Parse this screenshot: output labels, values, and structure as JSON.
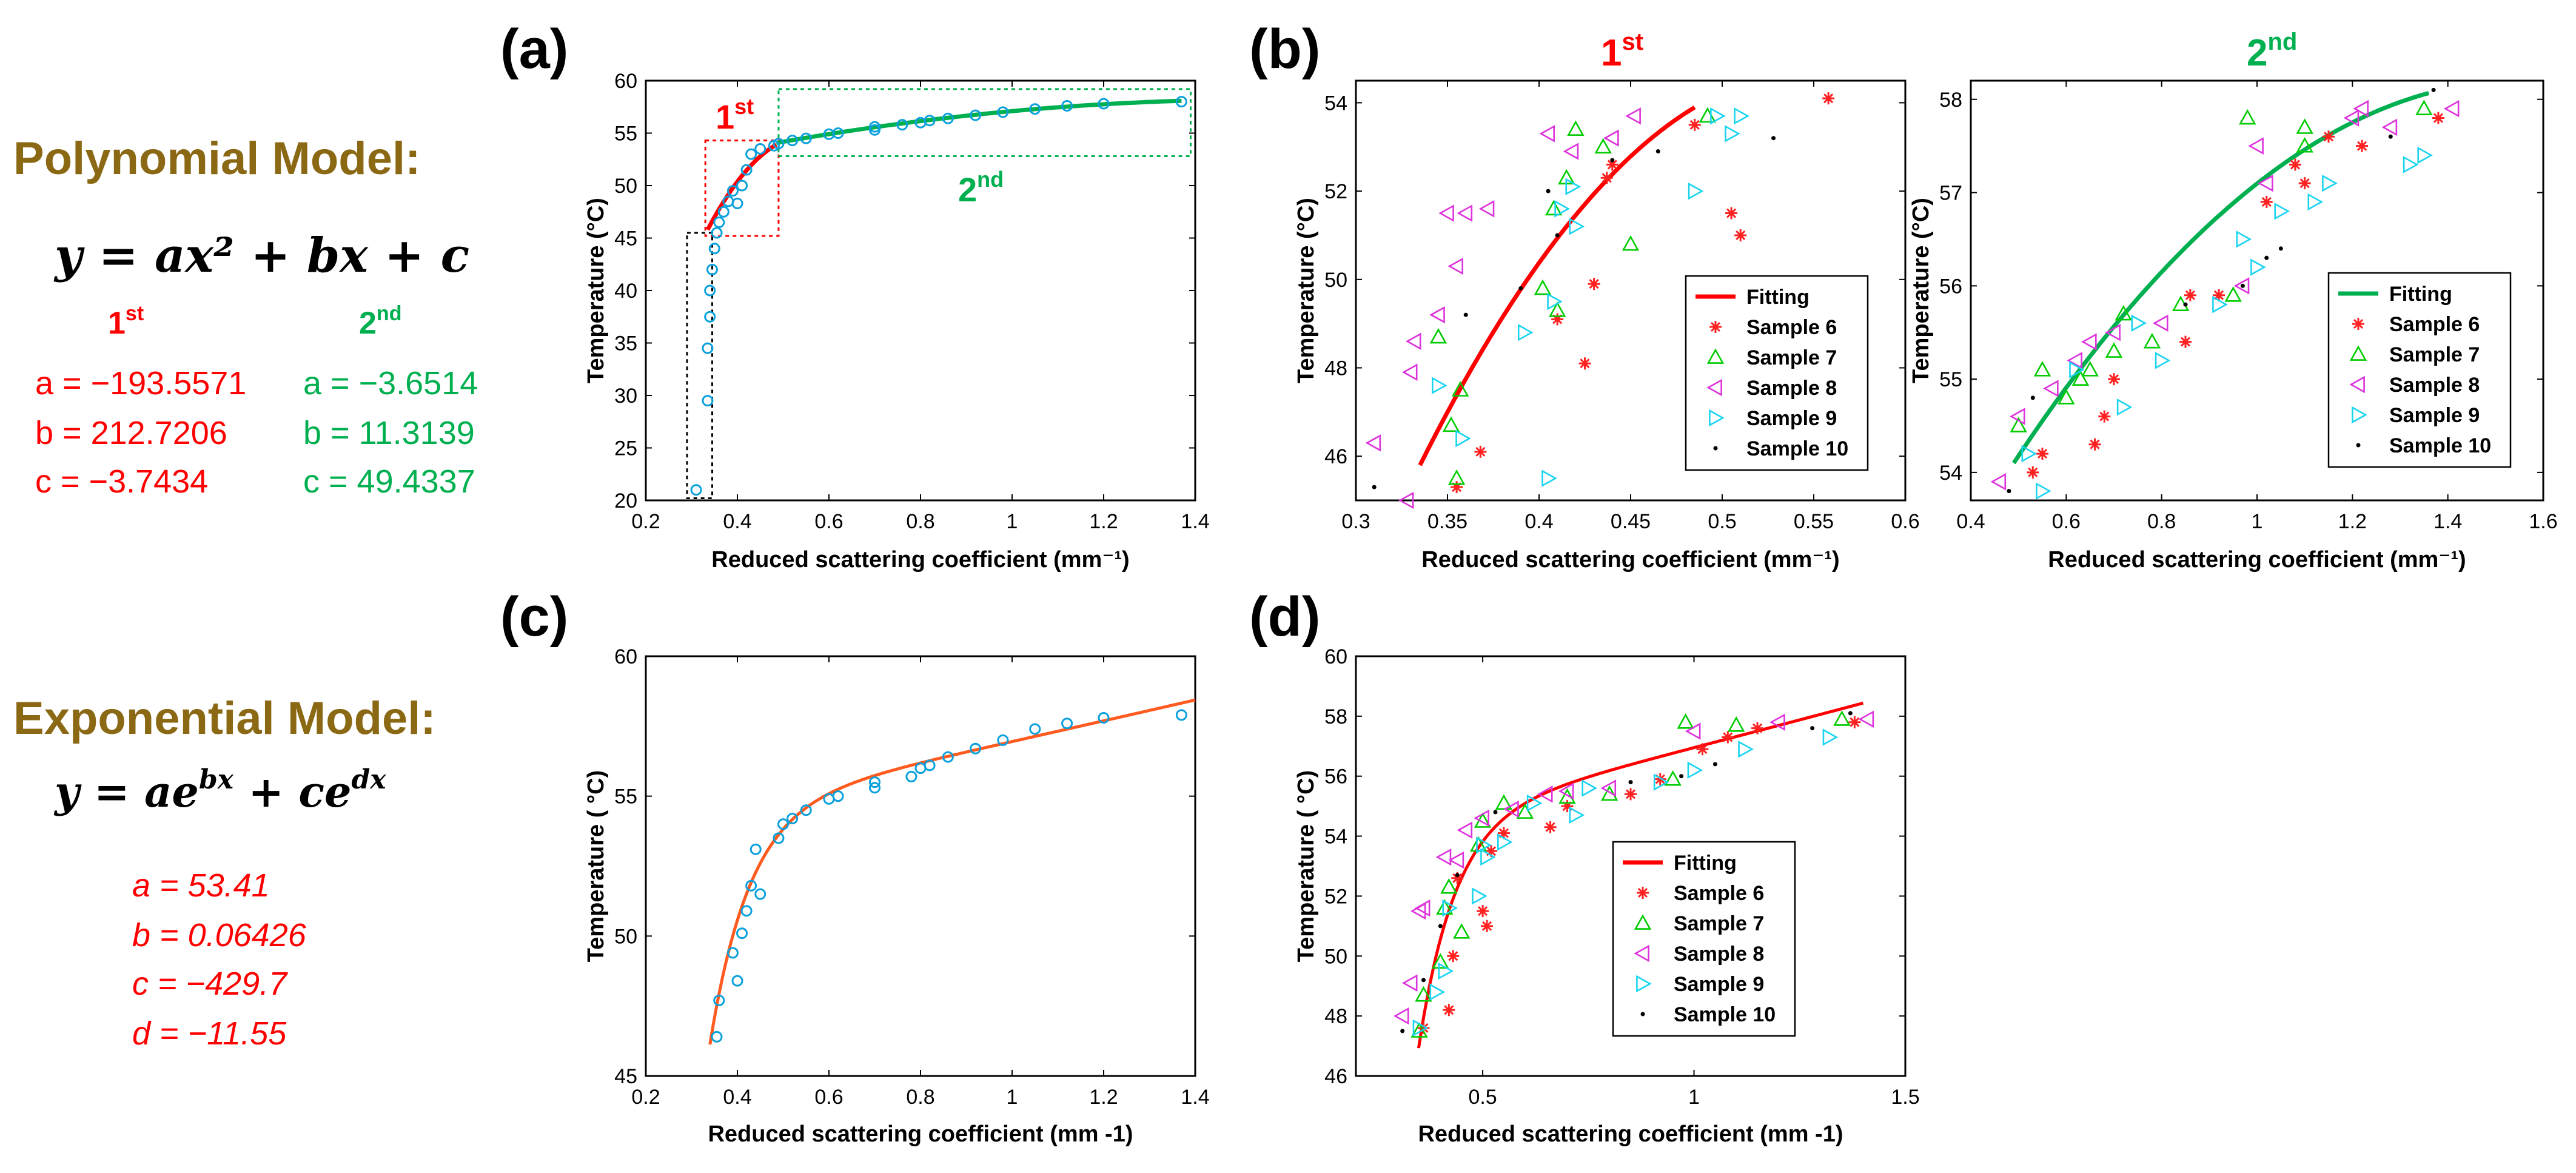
{
  "left_panel": {
    "polynomial": {
      "title": "Polynomial Model:",
      "equation": "y = ax² + bx + c",
      "col1": {
        "label": "1",
        "sup": "st",
        "a": "a = −193.5571",
        "b": "b = 212.7206",
        "c": "c = −3.7434"
      },
      "col2": {
        "label": "2",
        "sup": "nd",
        "a": "a = −3.6514",
        "b": "b = 11.3139",
        "c": "c = 49.4337"
      }
    },
    "exponential": {
      "title": "Exponential Model:",
      "equation": "y = ae^(bx) + ce^(dx)",
      "a": "a = 53.41",
      "b": "b = 0.06426",
      "c": "c = −429.7",
      "d": "d = −11.55"
    }
  },
  "colors": {
    "polynomial_title": "#8B6914",
    "first": "#ff0000",
    "second": "#00b050",
    "marker": "#0aa0dc",
    "fit_orange": "#ff5a1f",
    "s6": "#ff2020",
    "s7": "#00cc00",
    "s8": "#dd33dd",
    "s9": "#19d4f0",
    "s10": "#000000"
  },
  "chart_data": [
    {
      "id": "a",
      "label": "(a)",
      "type": "scatter",
      "xlabel": "Reduced scattering coefficient (mm⁻¹)",
      "ylabel": "Temperature (°C)",
      "xlim": [
        0.2,
        1.4
      ],
      "ylim": [
        20,
        60
      ],
      "xticks": [
        0.2,
        0.4,
        0.6,
        0.8,
        1,
        1.2,
        1.4
      ],
      "yticks": [
        20,
        25,
        30,
        35,
        40,
        45,
        50,
        55,
        60
      ],
      "points_x": [
        0.31,
        0.335,
        0.335,
        0.34,
        0.34,
        0.345,
        0.35,
        0.355,
        0.36,
        0.37,
        0.38,
        0.39,
        0.4,
        0.41,
        0.42,
        0.43,
        0.45,
        0.48,
        0.49,
        0.52,
        0.55,
        0.6,
        0.62,
        0.7,
        0.7,
        0.76,
        0.8,
        0.82,
        0.86,
        0.92,
        0.98,
        1.05,
        1.12,
        1.2,
        1.37
      ],
      "points_y": [
        21,
        29.5,
        34.5,
        37.5,
        40,
        42,
        44,
        45.5,
        46.5,
        47.5,
        48.5,
        49.5,
        48.3,
        50,
        51.5,
        53,
        53.5,
        53.8,
        54,
        54.3,
        54.5,
        54.9,
        55,
        55.3,
        55.6,
        55.8,
        56,
        56.2,
        56.4,
        56.7,
        57,
        57.3,
        57.6,
        57.8,
        58
      ],
      "fit1": {
        "name": "1st",
        "a": -193.5571,
        "b": 212.7206,
        "c": -3.7434,
        "xrange": [
          0.335,
          0.485
        ]
      },
      "fit2": {
        "name": "2nd",
        "a": -3.6514,
        "b": 11.3139,
        "c": 49.4337,
        "xrange": [
          0.485,
          1.37
        ]
      },
      "annot_1st": "1",
      "annot_1st_sup": "st",
      "annot_2nd": "2",
      "annot_2nd_sup": "nd"
    },
    {
      "id": "b1",
      "label": "(b)",
      "type": "scatter",
      "title": "1",
      "title_sup": "st",
      "xlabel": "Reduced scattering coefficient (mm⁻¹)",
      "ylabel": "Temperature (°C)",
      "xlim": [
        0.3,
        0.6
      ],
      "ylim": [
        45,
        54.5
      ],
      "xticks": [
        0.3,
        0.35,
        0.4,
        0.45,
        0.5,
        0.55,
        0.6
      ],
      "yticks": [
        46,
        48,
        50,
        52,
        54
      ],
      "fit": {
        "a": -193.5571,
        "b": 212.7206,
        "c": -3.7434,
        "xrange": [
          0.335,
          0.485
        ]
      },
      "legend": [
        "Fitting",
        "Sample 6",
        "Sample 7",
        "Sample 8",
        "Sample 9",
        "Sample 10"
      ],
      "series": [
        {
          "name": "Sample 6",
          "marker": "star",
          "x": [
            0.355,
            0.368,
            0.41,
            0.425,
            0.43,
            0.437,
            0.44,
            0.485,
            0.505,
            0.51,
            0.558
          ],
          "y": [
            45.3,
            46.1,
            49.1,
            48.1,
            49.9,
            52.3,
            52.6,
            53.5,
            51.5,
            51.0,
            54.1
          ]
        },
        {
          "name": "Sample 7",
          "marker": "tri-up",
          "x": [
            0.345,
            0.352,
            0.355,
            0.357,
            0.402,
            0.408,
            0.41,
            0.415,
            0.42,
            0.435,
            0.45,
            0.492
          ],
          "y": [
            48.7,
            46.7,
            45.5,
            47.5,
            49.8,
            51.6,
            49.3,
            52.3,
            53.4,
            53.0,
            50.8,
            53.7
          ]
        },
        {
          "name": "Sample 8",
          "marker": "tri-left",
          "x": [
            0.31,
            0.328,
            0.33,
            0.332,
            0.345,
            0.35,
            0.355,
            0.36,
            0.372,
            0.405,
            0.418,
            0.44,
            0.452
          ],
          "y": [
            46.3,
            45.0,
            47.9,
            48.6,
            49.2,
            51.5,
            50.3,
            51.5,
            51.6,
            53.3,
            52.9,
            53.2,
            53.7
          ]
        },
        {
          "name": "Sample 9",
          "marker": "tri-right",
          "x": [
            0.345,
            0.358,
            0.392,
            0.405,
            0.408,
            0.412,
            0.418,
            0.42,
            0.485,
            0.497,
            0.505,
            0.51
          ],
          "y": [
            47.6,
            46.4,
            48.8,
            45.5,
            49.5,
            51.6,
            52.1,
            51.2,
            52.0,
            53.7,
            53.3,
            53.7
          ]
        },
        {
          "name": "Sample 10",
          "marker": "dot",
          "x": [
            0.31,
            0.36,
            0.39,
            0.405,
            0.41,
            0.44,
            0.465,
            0.528
          ],
          "y": [
            45.3,
            49.2,
            49.8,
            52.0,
            51.0,
            52.7,
            52.9,
            53.2
          ]
        }
      ]
    },
    {
      "id": "b2",
      "type": "scatter",
      "title": "2",
      "title_sup": "nd",
      "xlabel": "Reduced scattering coefficient (mm⁻¹)",
      "ylabel": "Temperature (°C)",
      "xlim": [
        0.4,
        1.6
      ],
      "ylim": [
        53.7,
        58.2
      ],
      "xticks": [
        0.4,
        0.6,
        0.8,
        1,
        1.2,
        1.4,
        1.6
      ],
      "yticks": [
        54,
        55,
        56,
        57,
        58
      ],
      "fit": {
        "a": -3.6514,
        "b": 11.3139,
        "c": 49.4337,
        "xrange": [
          0.49,
          1.36
        ]
      },
      "legend": [
        "Fitting",
        "Sample 6",
        "Sample 7",
        "Sample 8",
        "Sample 9",
        "Sample 10"
      ],
      "series": [
        {
          "name": "Sample 6",
          "marker": "star",
          "x": [
            0.53,
            0.55,
            0.66,
            0.68,
            0.7,
            0.85,
            0.86,
            0.92,
            1.02,
            1.08,
            1.1,
            1.15,
            1.22,
            1.38
          ],
          "y": [
            54.0,
            54.2,
            54.3,
            54.6,
            55.0,
            55.4,
            55.9,
            55.9,
            56.9,
            57.3,
            57.1,
            57.6,
            57.5,
            57.8
          ]
        },
        {
          "name": "Sample 7",
          "marker": "tri-up",
          "x": [
            0.5,
            0.55,
            0.6,
            0.63,
            0.65,
            0.7,
            0.72,
            0.78,
            0.84,
            0.95,
            0.98,
            1.1,
            1.1,
            1.35
          ],
          "y": [
            54.5,
            55.1,
            54.8,
            55.0,
            55.1,
            55.3,
            55.7,
            55.4,
            55.8,
            55.9,
            57.8,
            57.5,
            57.7,
            57.9
          ]
        },
        {
          "name": "Sample 8",
          "marker": "tri-left",
          "x": [
            0.46,
            0.5,
            0.57,
            0.62,
            0.65,
            0.7,
            0.8,
            0.97,
            1.0,
            1.02,
            1.2,
            1.22,
            1.28,
            1.41
          ],
          "y": [
            53.9,
            54.6,
            54.9,
            55.2,
            55.4,
            55.5,
            55.6,
            56.0,
            57.5,
            57.1,
            57.8,
            57.9,
            57.7,
            57.9
          ]
        },
        {
          "name": "Sample 9",
          "marker": "tri-right",
          "x": [
            0.52,
            0.55,
            0.62,
            0.72,
            0.75,
            0.8,
            0.92,
            0.97,
            1.0,
            1.05,
            1.12,
            1.15,
            1.32,
            1.35
          ],
          "y": [
            54.2,
            53.8,
            55.1,
            54.7,
            55.6,
            55.2,
            55.8,
            56.5,
            56.2,
            56.8,
            56.9,
            57.1,
            57.3,
            57.4
          ]
        },
        {
          "name": "Sample 10",
          "marker": "dot",
          "x": [
            0.48,
            0.53,
            0.85,
            0.97,
            1.02,
            1.05,
            1.28,
            1.37
          ],
          "y": [
            53.8,
            54.8,
            55.8,
            56.0,
            56.3,
            56.4,
            57.6,
            58.1
          ]
        }
      ]
    },
    {
      "id": "c",
      "label": "(c)",
      "type": "scatter",
      "xlabel": "Reduced scattering coefficient (mm -1)",
      "ylabel": "Temperature ( °C)",
      "xlim": [
        0.2,
        1.4
      ],
      "ylim": [
        45,
        60
      ],
      "xticks": [
        0.2,
        0.4,
        0.6,
        0.8,
        1,
        1.2,
        1.4
      ],
      "yticks": [
        45,
        50,
        55,
        60
      ],
      "points_x": [
        0.355,
        0.36,
        0.39,
        0.4,
        0.41,
        0.42,
        0.43,
        0.44,
        0.45,
        0.49,
        0.5,
        0.52,
        0.55,
        0.6,
        0.62,
        0.7,
        0.7,
        0.78,
        0.8,
        0.82,
        0.86,
        0.92,
        0.98,
        1.05,
        1.12,
        1.2,
        1.37
      ],
      "points_y": [
        46.4,
        47.7,
        49.4,
        48.4,
        50.1,
        50.9,
        51.8,
        53.1,
        51.5,
        53.5,
        54.0,
        54.2,
        54.5,
        54.9,
        55.0,
        55.3,
        55.5,
        55.7,
        56.0,
        56.1,
        56.4,
        56.7,
        57.0,
        57.4,
        57.6,
        57.8,
        57.9
      ],
      "fit": {
        "a": 53.41,
        "b": 0.06426,
        "c": -429.7,
        "d": -11.55,
        "xrange": [
          0.34,
          1.4
        ]
      }
    },
    {
      "id": "d",
      "label": "(d)",
      "type": "scatter",
      "xlabel": "Reduced scattering coefficient (mm -1)",
      "ylabel": "Temperature ( °C)",
      "xlim": [
        0.2,
        1.5
      ],
      "ylim": [
        46,
        60
      ],
      "xticks": [
        0.5,
        1,
        1.5
      ],
      "yticks": [
        46,
        48,
        50,
        52,
        54,
        56,
        58,
        60
      ],
      "fit": {
        "a": 53.41,
        "b": 0.06426,
        "c": -429.7,
        "d": -11.55,
        "xrange": [
          0.335,
          1.4
        ]
      },
      "legend": [
        "Fitting",
        "Sample 6",
        "Sample 7",
        "Sample 8",
        "Sample 9",
        "Sample 10"
      ],
      "series": [
        {
          "name": "Sample 6",
          "marker": "star",
          "x": [
            0.36,
            0.42,
            0.43,
            0.44,
            0.5,
            0.51,
            0.52,
            0.55,
            0.66,
            0.7,
            0.85,
            0.92,
            1.02,
            1.08,
            1.15,
            1.38
          ],
          "y": [
            47.6,
            48.2,
            50.0,
            52.6,
            51.5,
            51.0,
            53.5,
            54.1,
            54.3,
            55.0,
            55.4,
            55.9,
            56.9,
            57.3,
            57.6,
            57.8
          ]
        },
        {
          "name": "Sample 7",
          "marker": "tri-up",
          "x": [
            0.35,
            0.36,
            0.4,
            0.41,
            0.42,
            0.45,
            0.49,
            0.5,
            0.55,
            0.6,
            0.7,
            0.8,
            0.95,
            0.98,
            1.1,
            1.35
          ],
          "y": [
            47.5,
            48.7,
            49.8,
            51.6,
            52.3,
            50.8,
            53.7,
            54.5,
            55.1,
            54.8,
            55.3,
            55.4,
            55.9,
            57.8,
            57.7,
            57.9
          ]
        },
        {
          "name": "Sample 8",
          "marker": "tri-left",
          "x": [
            0.31,
            0.33,
            0.35,
            0.36,
            0.41,
            0.44,
            0.46,
            0.5,
            0.57,
            0.65,
            0.7,
            0.8,
            1.0,
            1.2,
            1.41
          ],
          "y": [
            48.0,
            49.1,
            51.5,
            51.6,
            53.3,
            53.2,
            54.2,
            54.6,
            54.9,
            55.4,
            55.5,
            55.6,
            57.5,
            57.8,
            57.9
          ]
        },
        {
          "name": "Sample 9",
          "marker": "tri-right",
          "x": [
            0.35,
            0.39,
            0.41,
            0.42,
            0.49,
            0.5,
            0.51,
            0.55,
            0.62,
            0.72,
            0.75,
            0.92,
            1.0,
            1.12,
            1.32
          ],
          "y": [
            47.6,
            48.8,
            49.5,
            51.6,
            52.0,
            53.7,
            53.3,
            53.8,
            55.1,
            54.7,
            55.6,
            55.8,
            56.2,
            56.9,
            57.3
          ]
        },
        {
          "name": "Sample 10",
          "marker": "dot",
          "x": [
            0.31,
            0.36,
            0.4,
            0.44,
            0.53,
            0.85,
            0.97,
            1.05,
            1.28,
            1.37
          ],
          "y": [
            47.5,
            49.2,
            51.0,
            52.7,
            54.8,
            55.8,
            56.0,
            56.4,
            57.6,
            58.1
          ]
        }
      ]
    }
  ]
}
